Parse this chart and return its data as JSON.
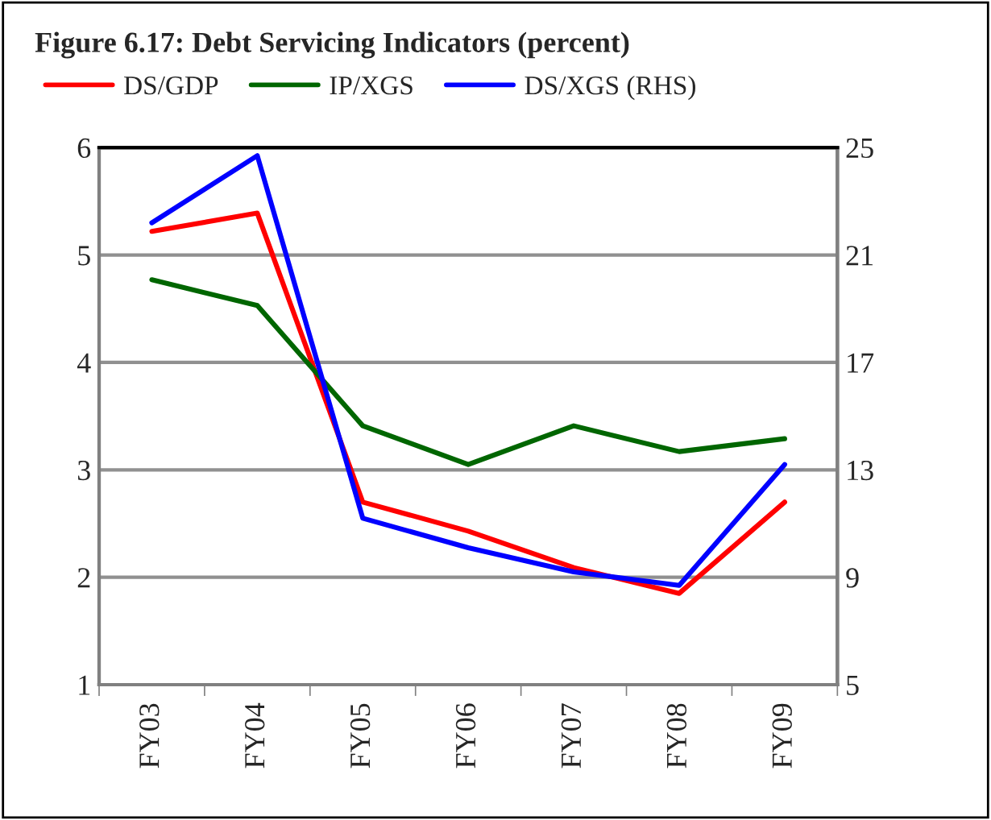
{
  "chart_data": {
    "type": "line",
    "title": "Figure 6.17: Debt Servicing Indicators (percent)",
    "categories": [
      "FY03",
      "FY04",
      "FY05",
      "FY06",
      "FY07",
      "FY08",
      "FY09"
    ],
    "series": [
      {
        "name": "DS/GDP",
        "color": "#ff0000",
        "values": [
          5.22,
          5.39,
          2.7,
          2.43,
          2.09,
          1.85,
          2.7
        ]
      },
      {
        "name": "IP/XGS",
        "color": "#006600",
        "values": [
          4.77,
          4.53,
          3.41,
          3.05,
          3.41,
          3.17,
          3.29
        ]
      },
      {
        "name": "DS/XGS (RHS)",
        "color": "#0000ff",
        "axis": "y2",
        "values": [
          22.2,
          24.7,
          11.2,
          10.1,
          9.2,
          8.7,
          13.2
        ]
      }
    ],
    "ylim": [
      1,
      6
    ],
    "yticks": [
      1,
      2,
      3,
      4,
      5,
      6
    ],
    "y2lim": [
      5,
      25
    ],
    "y2ticks": [
      5,
      9,
      13,
      17,
      21,
      25
    ],
    "grid": "y",
    "legend": "top",
    "marker": "none",
    "line_style": "solid"
  }
}
